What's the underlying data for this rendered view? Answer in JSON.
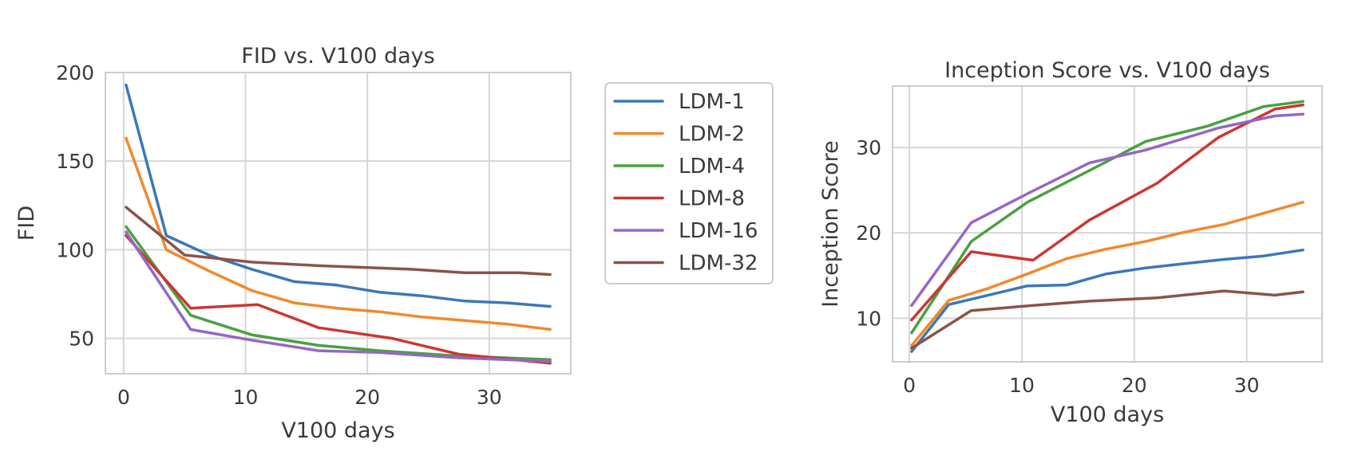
{
  "colors": {
    "LDM-1": "#3a78b8",
    "LDM-2": "#f0892c",
    "LDM-4": "#49a13f",
    "LDM-8": "#cc3633",
    "LDM-16": "#9467c4",
    "LDM-32": "#8b5348"
  },
  "legend": {
    "placement": "right of first chart",
    "entries": [
      "LDM-1",
      "LDM-2",
      "LDM-4",
      "LDM-8",
      "LDM-16",
      "LDM-32"
    ]
  },
  "chart_data": [
    {
      "type": "line",
      "title": "FID vs. V100 days",
      "xlabel": "V100 days",
      "ylabel": "FID",
      "xlim": [
        -1.5,
        36.7
      ],
      "ylim": [
        30,
        200
      ],
      "xticks": [
        0,
        10,
        20,
        30
      ],
      "yticks": [
        50,
        100,
        150,
        200
      ],
      "grid": true,
      "series": [
        {
          "name": "LDM-1",
          "x": [
            0.2,
            3.5,
            7,
            10.5,
            14,
            17.5,
            21,
            24.5,
            28,
            31.5,
            35
          ],
          "y": [
            193,
            108,
            97,
            89,
            82,
            80,
            76,
            74,
            71,
            70,
            68
          ]
        },
        {
          "name": "LDM-2",
          "x": [
            0.2,
            3.5,
            7,
            10.5,
            14,
            17.5,
            21,
            24.5,
            28,
            31.5,
            35
          ],
          "y": [
            163,
            100,
            88,
            77,
            70,
            67,
            65,
            62,
            60,
            58,
            55
          ]
        },
        {
          "name": "LDM-4",
          "x": [
            0.2,
            5.5,
            10.5,
            16,
            21,
            27.5,
            35
          ],
          "y": [
            113,
            63,
            52,
            46,
            43,
            40,
            38
          ]
        },
        {
          "name": "LDM-8",
          "x": [
            0.2,
            5.5,
            11,
            16,
            22,
            27.5,
            35
          ],
          "y": [
            108,
            67,
            69,
            56,
            50,
            41,
            36
          ]
        },
        {
          "name": "LDM-16",
          "x": [
            0.2,
            5.5,
            10.5,
            16,
            21,
            27.5,
            35
          ],
          "y": [
            110,
            55,
            49,
            43,
            42,
            39,
            37
          ]
        },
        {
          "name": "LDM-32",
          "x": [
            0.2,
            5,
            10.5,
            16,
            23.5,
            28,
            32.5,
            35
          ],
          "y": [
            124,
            97,
            93,
            91,
            89,
            87,
            87,
            86
          ]
        }
      ]
    },
    {
      "type": "line",
      "title": "Inception Score vs. V100 days",
      "xlabel": "V100 days",
      "ylabel": "Inception Score",
      "xlim": [
        -1.5,
        36.7
      ],
      "ylim": [
        4.9,
        37.2
      ],
      "xticks": [
        0,
        10,
        20,
        30
      ],
      "yticks": [
        10,
        20,
        30
      ],
      "grid": true,
      "series": [
        {
          "name": "LDM-1",
          "x": [
            0.2,
            3.5,
            7,
            10.5,
            14,
            17.5,
            21,
            24.5,
            28,
            31.5,
            35
          ],
          "y": [
            6.1,
            11.6,
            12.7,
            13.8,
            13.9,
            15.2,
            15.9,
            16.4,
            16.9,
            17.3,
            18
          ]
        },
        {
          "name": "LDM-2",
          "x": [
            0.2,
            3.5,
            7,
            10.5,
            14,
            17.5,
            21,
            24.5,
            28,
            31.5,
            35
          ],
          "y": [
            6.8,
            12.1,
            13.5,
            15.2,
            17,
            18.1,
            19,
            20.1,
            21,
            22.3,
            23.6
          ]
        },
        {
          "name": "LDM-4",
          "x": [
            0.2,
            5.5,
            10.5,
            16,
            21,
            26.5,
            31.5,
            35
          ],
          "y": [
            8.3,
            19,
            23.6,
            27.3,
            30.7,
            32.5,
            34.8,
            35.4
          ]
        },
        {
          "name": "LDM-8",
          "x": [
            0.2,
            5.5,
            11,
            16,
            22,
            27.5,
            32.5,
            35
          ],
          "y": [
            9.8,
            17.8,
            16.8,
            21.5,
            25.8,
            31.2,
            34.5,
            35
          ]
        },
        {
          "name": "LDM-16",
          "x": [
            0.2,
            5.5,
            10.5,
            16,
            21,
            27.5,
            32.5,
            35
          ],
          "y": [
            11.5,
            21.2,
            24.6,
            28.2,
            29.7,
            32.3,
            33.7,
            33.9
          ]
        },
        {
          "name": "LDM-32",
          "x": [
            0.2,
            5.5,
            11,
            16,
            22,
            28,
            32.5,
            35
          ],
          "y": [
            6.5,
            10.9,
            11.5,
            12,
            12.4,
            13.2,
            12.7,
            13.1
          ]
        }
      ]
    }
  ]
}
